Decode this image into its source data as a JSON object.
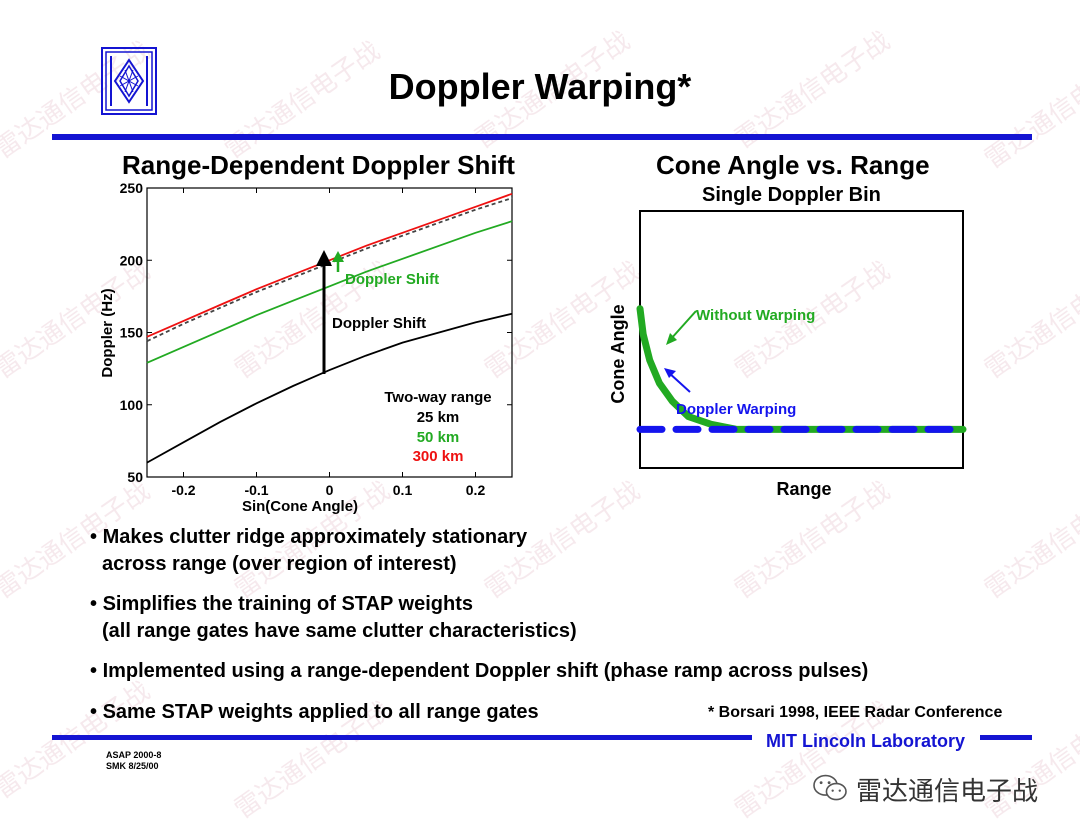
{
  "header": {
    "title": "Doppler Warping*"
  },
  "left_panel": {
    "heading": "Range-Dependent Doppler Shift",
    "annotation_colored": "Doppler Shift",
    "annotation_black": "Doppler Shift",
    "legend_title": "Two-way range",
    "legend_items": [
      {
        "label": "25 km",
        "color": "#000000"
      },
      {
        "label": "50 km",
        "color": "#22aa22"
      },
      {
        "label": "300 km",
        "color": "#ee1111"
      }
    ]
  },
  "chart_data": [
    {
      "type": "line",
      "xlabel": "Sin(Cone Angle)",
      "ylabel": "Doppler (Hz)",
      "xlim": [
        -0.25,
        0.25
      ],
      "ylim": [
        50,
        250
      ],
      "xticks": [
        -0.2,
        -0.1,
        0,
        0.1,
        0.2
      ],
      "xtick_labels": [
        "-0.2",
        "-0.1",
        "0",
        "0.1",
        "0.2"
      ],
      "yticks": [
        50,
        100,
        150,
        200,
        250
      ],
      "ytick_labels": [
        "50",
        "100",
        "150",
        "200",
        "250"
      ],
      "x": [
        -0.25,
        -0.2,
        -0.15,
        -0.1,
        -0.05,
        0,
        0.05,
        0.1,
        0.15,
        0.2,
        0.25
      ],
      "series": [
        {
          "name": "25 km",
          "color": "#000000",
          "style": "solid",
          "values": [
            60,
            74,
            88,
            101,
            113,
            124,
            134,
            143,
            150,
            157,
            163
          ]
        },
        {
          "name": "50 km",
          "color": "#22aa22",
          "style": "solid",
          "values": [
            129,
            140,
            151,
            162,
            172,
            182,
            192,
            201,
            210,
            219,
            227
          ]
        },
        {
          "name": "300 km",
          "color": "#ee1111",
          "style": "solid",
          "values": [
            147,
            158,
            169,
            180,
            190,
            200,
            210,
            219,
            228,
            237,
            246
          ]
        },
        {
          "color": "#444444",
          "style": "dashed",
          "values": [
            144,
            156,
            167,
            178,
            188,
            198,
            208,
            217,
            226,
            235,
            243
          ]
        }
      ]
    },
    {
      "type": "line",
      "title": "Single Doppler Bin",
      "xlabel": "Range",
      "ylabel": "Cone Angle",
      "axis_ticks": false,
      "series": [
        {
          "name": "Without Warping",
          "color": "#22aa22",
          "style": "solid-thick",
          "x": [
            0,
            0.01,
            0.03,
            0.06,
            0.1,
            0.15,
            0.22,
            0.3,
            0.5,
            1.0
          ],
          "values": [
            0.62,
            0.52,
            0.42,
            0.33,
            0.26,
            0.2,
            0.17,
            0.15,
            0.15,
            0.15
          ]
        },
        {
          "name": "Doppler Warping",
          "color": "#1414ee",
          "style": "dashed-thick",
          "x": [
            0,
            1.0
          ],
          "values": [
            0.15,
            0.15
          ]
        }
      ]
    }
  ],
  "right_panel": {
    "heading": "Cone Angle vs. Range",
    "subheading": "Single Doppler Bin",
    "label_without": "Without Warping",
    "label_doppler": "Doppler Warping"
  },
  "bullets": [
    {
      "line1": "Makes clutter ridge approximately stationary",
      "line2": "across range (over region of interest)"
    },
    {
      "line1": "Simplifies the training of STAP weights",
      "line2": "(all range gates have same clutter characteristics)"
    },
    {
      "line1": "Implemented using a range-dependent Doppler shift (phase ramp across pulses)",
      "line2": ""
    },
    {
      "line1": "Same STAP weights applied to all range gates",
      "line2": ""
    }
  ],
  "footer": {
    "footnote": "* Borsari 1998, IEEE Radar Conference",
    "lab": "MIT Lincoln Laboratory",
    "id_line1": "ASAP 2000-8",
    "id_line2": "SMK 8/25/00",
    "wechat_name": "雷达通信电子战"
  },
  "watermark_text": "雷达通信电子战",
  "colors": {
    "rule_blue": "#1414d2",
    "green": "#22aa22",
    "red": "#ee1111",
    "blue": "#1414ee"
  }
}
